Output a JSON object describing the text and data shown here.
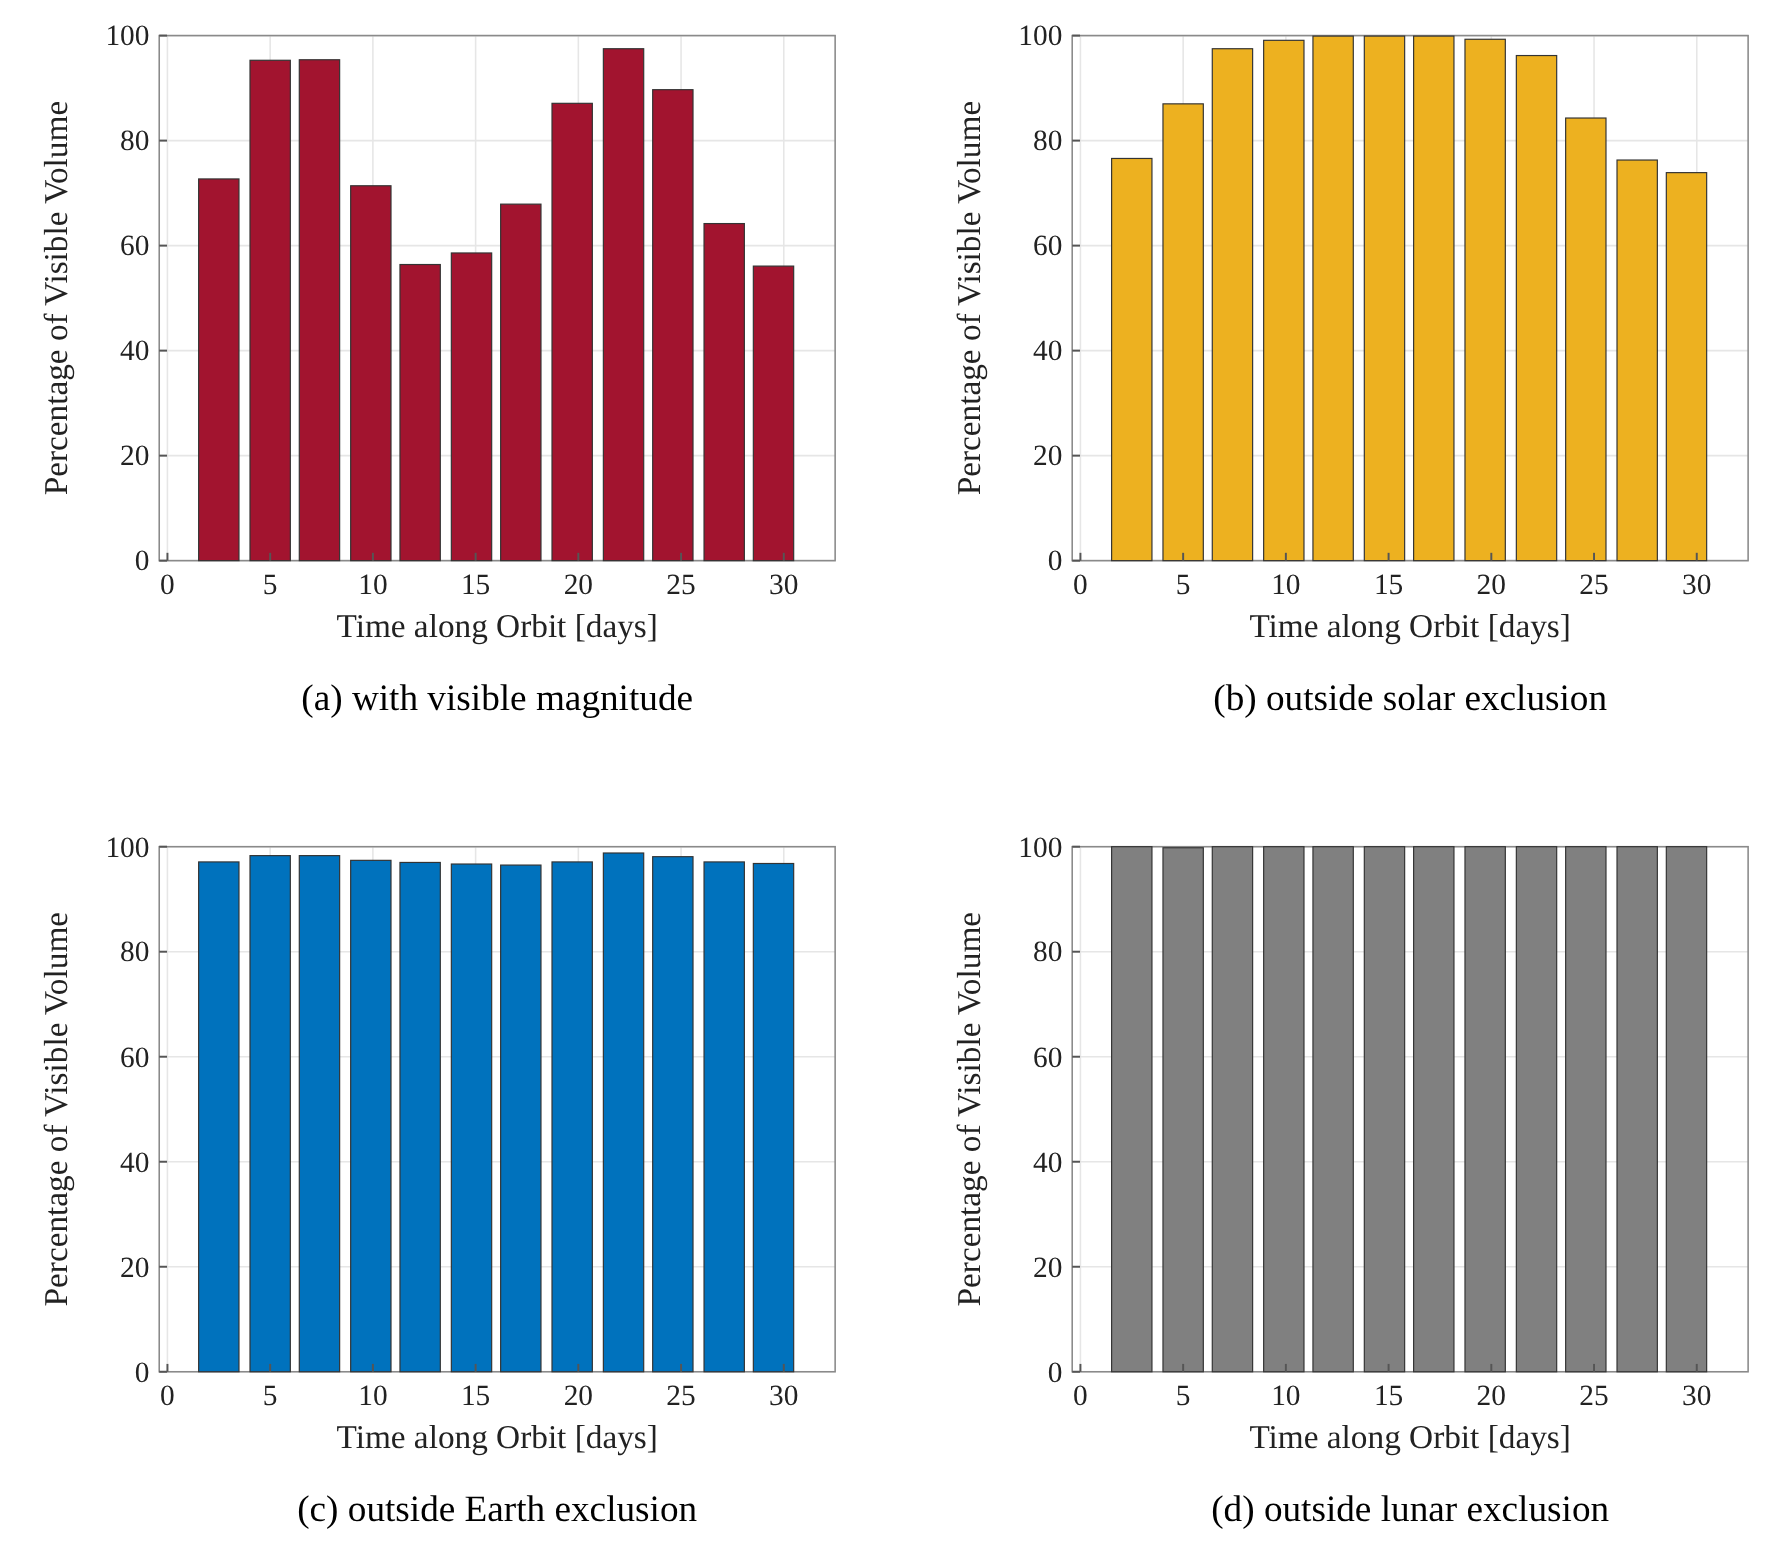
{
  "chart_data": [
    {
      "type": "bar",
      "title": "(a) with visible magnitude",
      "xlabel": "Time along Orbit [days]",
      "ylabel": "Percentage of Visible Volume",
      "x": [
        2.5,
        5.0,
        7.4,
        9.9,
        12.3,
        14.8,
        17.2,
        19.7,
        22.2,
        24.6,
        27.1,
        29.5
      ],
      "values": [
        72.7,
        95.3,
        95.4,
        71.4,
        56.4,
        58.6,
        67.9,
        87.1,
        97.5,
        89.7,
        64.2,
        56.1
      ],
      "color": "#a2142f",
      "xlim": [
        -0.4,
        32.5
      ],
      "xticks": [
        0,
        5,
        10,
        15,
        20,
        25,
        30
      ],
      "ylim": [
        0,
        100
      ],
      "yticks": [
        0,
        20,
        40,
        60,
        80,
        100
      ],
      "grid": true
    },
    {
      "type": "bar",
      "title": "(b) outside solar exclusion",
      "xlabel": "Time along Orbit [days]",
      "ylabel": "Percentage of Visible Volume",
      "x": [
        2.5,
        5.0,
        7.4,
        9.9,
        12.3,
        14.8,
        17.2,
        19.7,
        22.2,
        24.6,
        27.1,
        29.5
      ],
      "values": [
        76.6,
        87.0,
        97.5,
        99.1,
        99.9,
        99.9,
        99.9,
        99.3,
        96.2,
        84.3,
        76.3,
        73.9
      ],
      "color": "#edb120",
      "xlim": [
        -0.4,
        32.5
      ],
      "xticks": [
        0,
        5,
        10,
        15,
        20,
        25,
        30
      ],
      "ylim": [
        0,
        100
      ],
      "yticks": [
        0,
        20,
        40,
        60,
        80,
        100
      ],
      "grid": true
    },
    {
      "type": "bar",
      "title": "(c) outside Earth exclusion",
      "xlabel": "Time along Orbit [days]",
      "ylabel": "Percentage of Visible Volume",
      "x": [
        2.5,
        5.0,
        7.4,
        9.9,
        12.3,
        14.8,
        17.2,
        19.7,
        22.2,
        24.6,
        27.1,
        29.5
      ],
      "values": [
        97.1,
        98.3,
        98.3,
        97.4,
        97.0,
        96.7,
        96.5,
        97.1,
        98.8,
        98.1,
        97.1,
        96.8
      ],
      "color": "#0072bd",
      "xlim": [
        -0.4,
        32.5
      ],
      "xticks": [
        0,
        5,
        10,
        15,
        20,
        25,
        30
      ],
      "ylim": [
        0,
        100
      ],
      "yticks": [
        0,
        20,
        40,
        60,
        80,
        100
      ],
      "grid": true
    },
    {
      "type": "bar",
      "title": "(d) outside lunar exclusion",
      "xlabel": "Time along Orbit [days]",
      "ylabel": "Percentage of Visible Volume",
      "x": [
        2.5,
        5.0,
        7.4,
        9.9,
        12.3,
        14.8,
        17.2,
        19.7,
        22.2,
        24.6,
        27.1,
        29.5
      ],
      "values": [
        100,
        99.8,
        100,
        100,
        100,
        100,
        100,
        100,
        100,
        100,
        100,
        100
      ],
      "color": "#808080",
      "xlim": [
        -0.4,
        32.5
      ],
      "xticks": [
        0,
        5,
        10,
        15,
        20,
        25,
        30
      ],
      "ylim": [
        0,
        100
      ],
      "yticks": [
        0,
        20,
        40,
        60,
        80,
        100
      ],
      "grid": true
    }
  ]
}
